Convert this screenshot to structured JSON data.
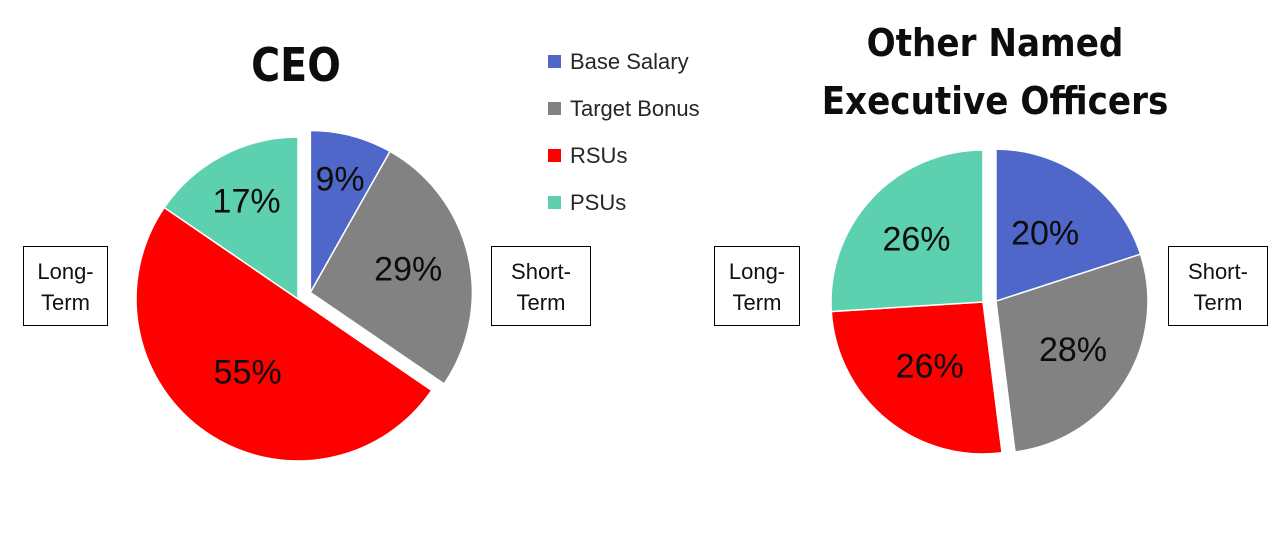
{
  "legend": [
    {
      "label": "Base Salary",
      "color": "#4f67c9"
    },
    {
      "label": "Target Bonus",
      "color": "#828282"
    },
    {
      "label": "RSUs",
      "color": "#ff0000"
    },
    {
      "label": "PSUs",
      "color": "#5dd0b0"
    }
  ],
  "term_labels": {
    "long_term": [
      "Long-",
      "Term"
    ],
    "short_term": [
      "Short-",
      "Term"
    ]
  },
  "chart_data": [
    {
      "type": "pie",
      "title": "CEO",
      "categories": [
        "Base Salary",
        "Target Bonus",
        "RSUs",
        "PSUs"
      ],
      "values": [
        9,
        29,
        55,
        17
      ],
      "labels": [
        "9%",
        "29%",
        "55%",
        "17%"
      ],
      "exploded": "Short-Term (Base Salary, Target Bonus)"
    },
    {
      "type": "pie",
      "title": "Other Named Executive Officers",
      "title_lines": [
        "Other Named",
        "Executive Officers"
      ],
      "categories": [
        "Base Salary",
        "Target Bonus",
        "RSUs",
        "PSUs"
      ],
      "values": [
        20,
        28,
        26,
        26
      ],
      "labels": [
        "20%",
        "28%",
        "26%",
        "26%"
      ],
      "exploded": "Short-Term (Base Salary, Target Bonus)"
    }
  ]
}
